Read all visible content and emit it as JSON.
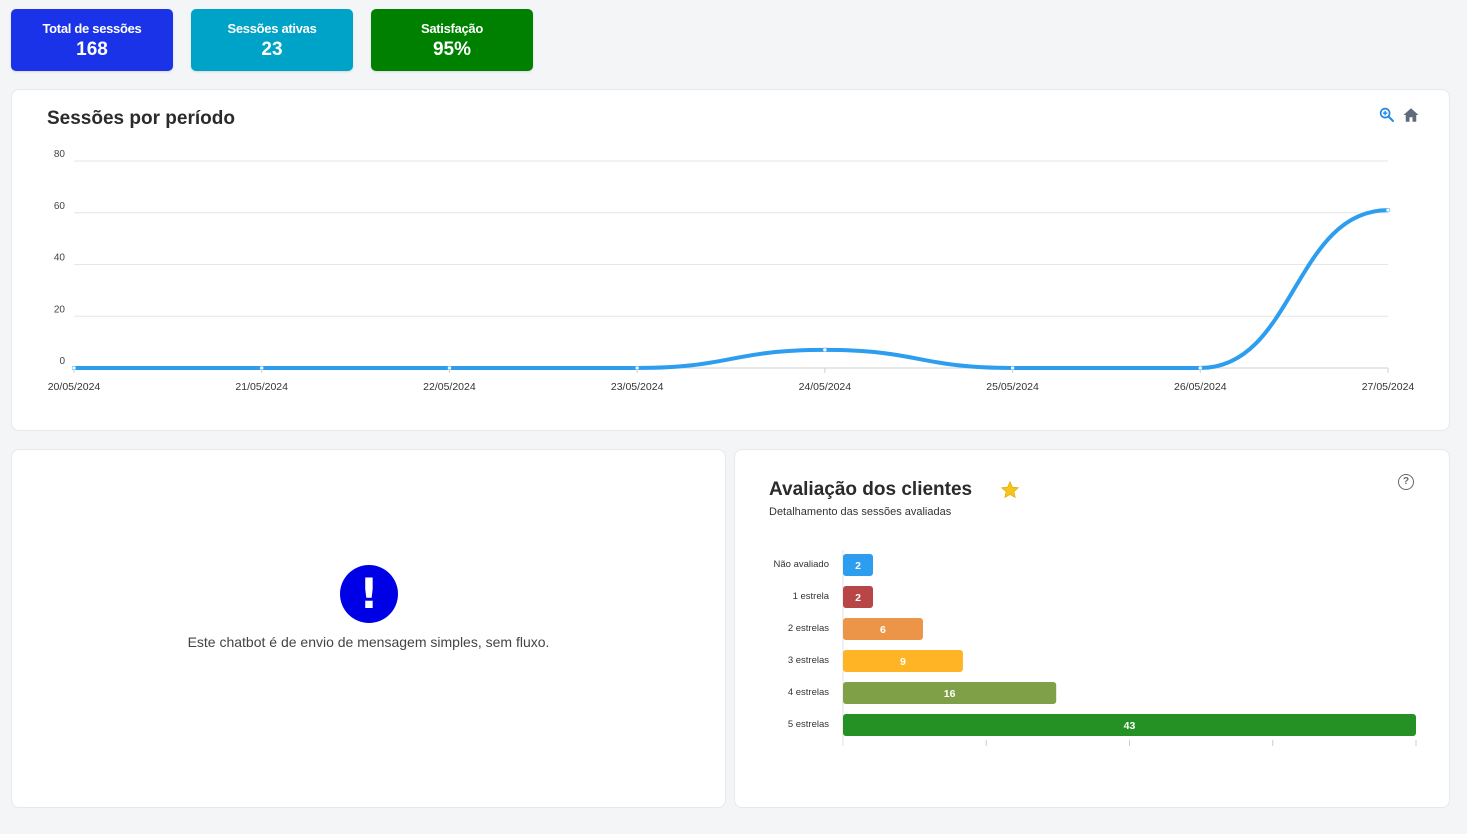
{
  "stats": {
    "total": {
      "label": "Total de sessões",
      "value": "168",
      "color": "#1a33e8"
    },
    "active": {
      "label": "Sessões ativas",
      "value": "23",
      "color": "#00a3c8"
    },
    "satisfaction": {
      "label": "Satisfação",
      "value": "95%",
      "color": "#008000"
    }
  },
  "line_panel": {
    "title": "Sessões por período",
    "tools": [
      "zoom-in-icon",
      "home-icon"
    ]
  },
  "flow_panel": {
    "icon": "exclamation-icon",
    "message": "Este chatbot é de envio de mensagem simples, sem fluxo."
  },
  "rating_panel": {
    "title": "Avaliação dos clientes",
    "title_icon": "star-icon",
    "subtitle": "Detalhamento das sessões avaliadas",
    "help_label": "?"
  },
  "chart_data": [
    {
      "type": "line",
      "title": "Sessões por período",
      "x": [
        "20/05/2024",
        "21/05/2024",
        "22/05/2024",
        "23/05/2024",
        "24/05/2024",
        "25/05/2024",
        "26/05/2024",
        "27/05/2024"
      ],
      "series": [
        {
          "values": [
            0,
            0,
            0,
            0,
            7,
            0,
            0,
            61
          ],
          "color": "#2d9df0"
        }
      ],
      "yticks": [
        0,
        20,
        40,
        60,
        80
      ],
      "ylim": [
        0,
        80
      ],
      "grid": true
    },
    {
      "type": "bar",
      "orientation": "horizontal",
      "categories": [
        "Não avaliado",
        "1 estrela",
        "2 estrelas",
        "3 estrelas",
        "4 estrelas",
        "5 estrelas"
      ],
      "values": [
        2,
        2,
        6,
        9,
        16,
        43
      ],
      "colors": [
        "#2d9df0",
        "#b84646",
        "#ec9447",
        "#ffb425",
        "#7fa046",
        "#259125"
      ],
      "xlim": [
        0,
        43
      ]
    }
  ]
}
